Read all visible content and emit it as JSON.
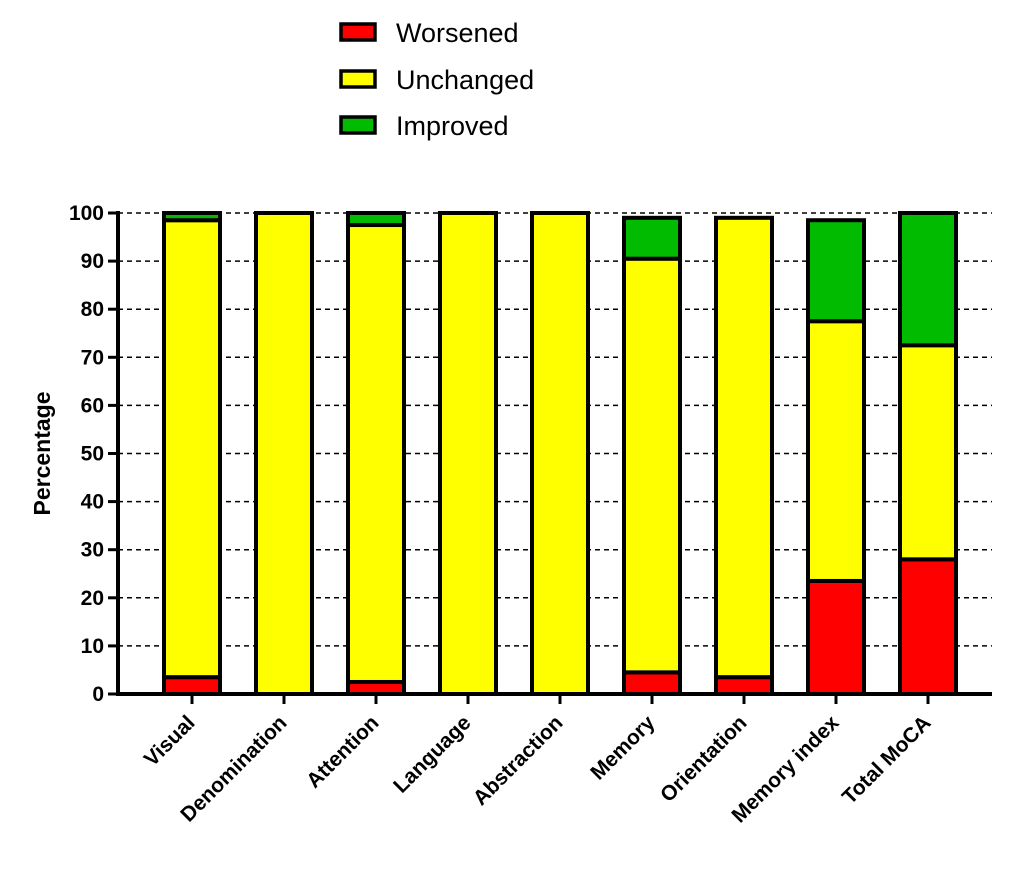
{
  "chart_data": {
    "type": "bar",
    "stacked": true,
    "title": "",
    "xlabel": "",
    "ylabel": "Percentage",
    "ylim": [
      0,
      100
    ],
    "yticks": [
      0,
      10,
      20,
      30,
      40,
      50,
      60,
      70,
      80,
      90,
      100
    ],
    "grid": "horizontal dashed",
    "legend_position": "top-center",
    "categories": [
      "Visual",
      "Denomination",
      "Attention",
      "Language",
      "Abstraction",
      "Memory",
      "Orientation",
      "Memory index",
      "Total MoCA"
    ],
    "series": [
      {
        "name": "Worsened",
        "color": "#ff0000",
        "values": [
          3.5,
          0,
          2.5,
          0,
          0,
          4.5,
          3.5,
          23.5,
          28
        ]
      },
      {
        "name": "Unchanged",
        "color": "#ffff00",
        "values": [
          95,
          100,
          95,
          100,
          100,
          86,
          95.5,
          54,
          44.5
        ]
      },
      {
        "name": "Improved",
        "color": "#00bb00",
        "values": [
          1.5,
          0,
          2.5,
          0,
          0,
          8.5,
          0,
          21,
          27.5
        ]
      }
    ]
  }
}
